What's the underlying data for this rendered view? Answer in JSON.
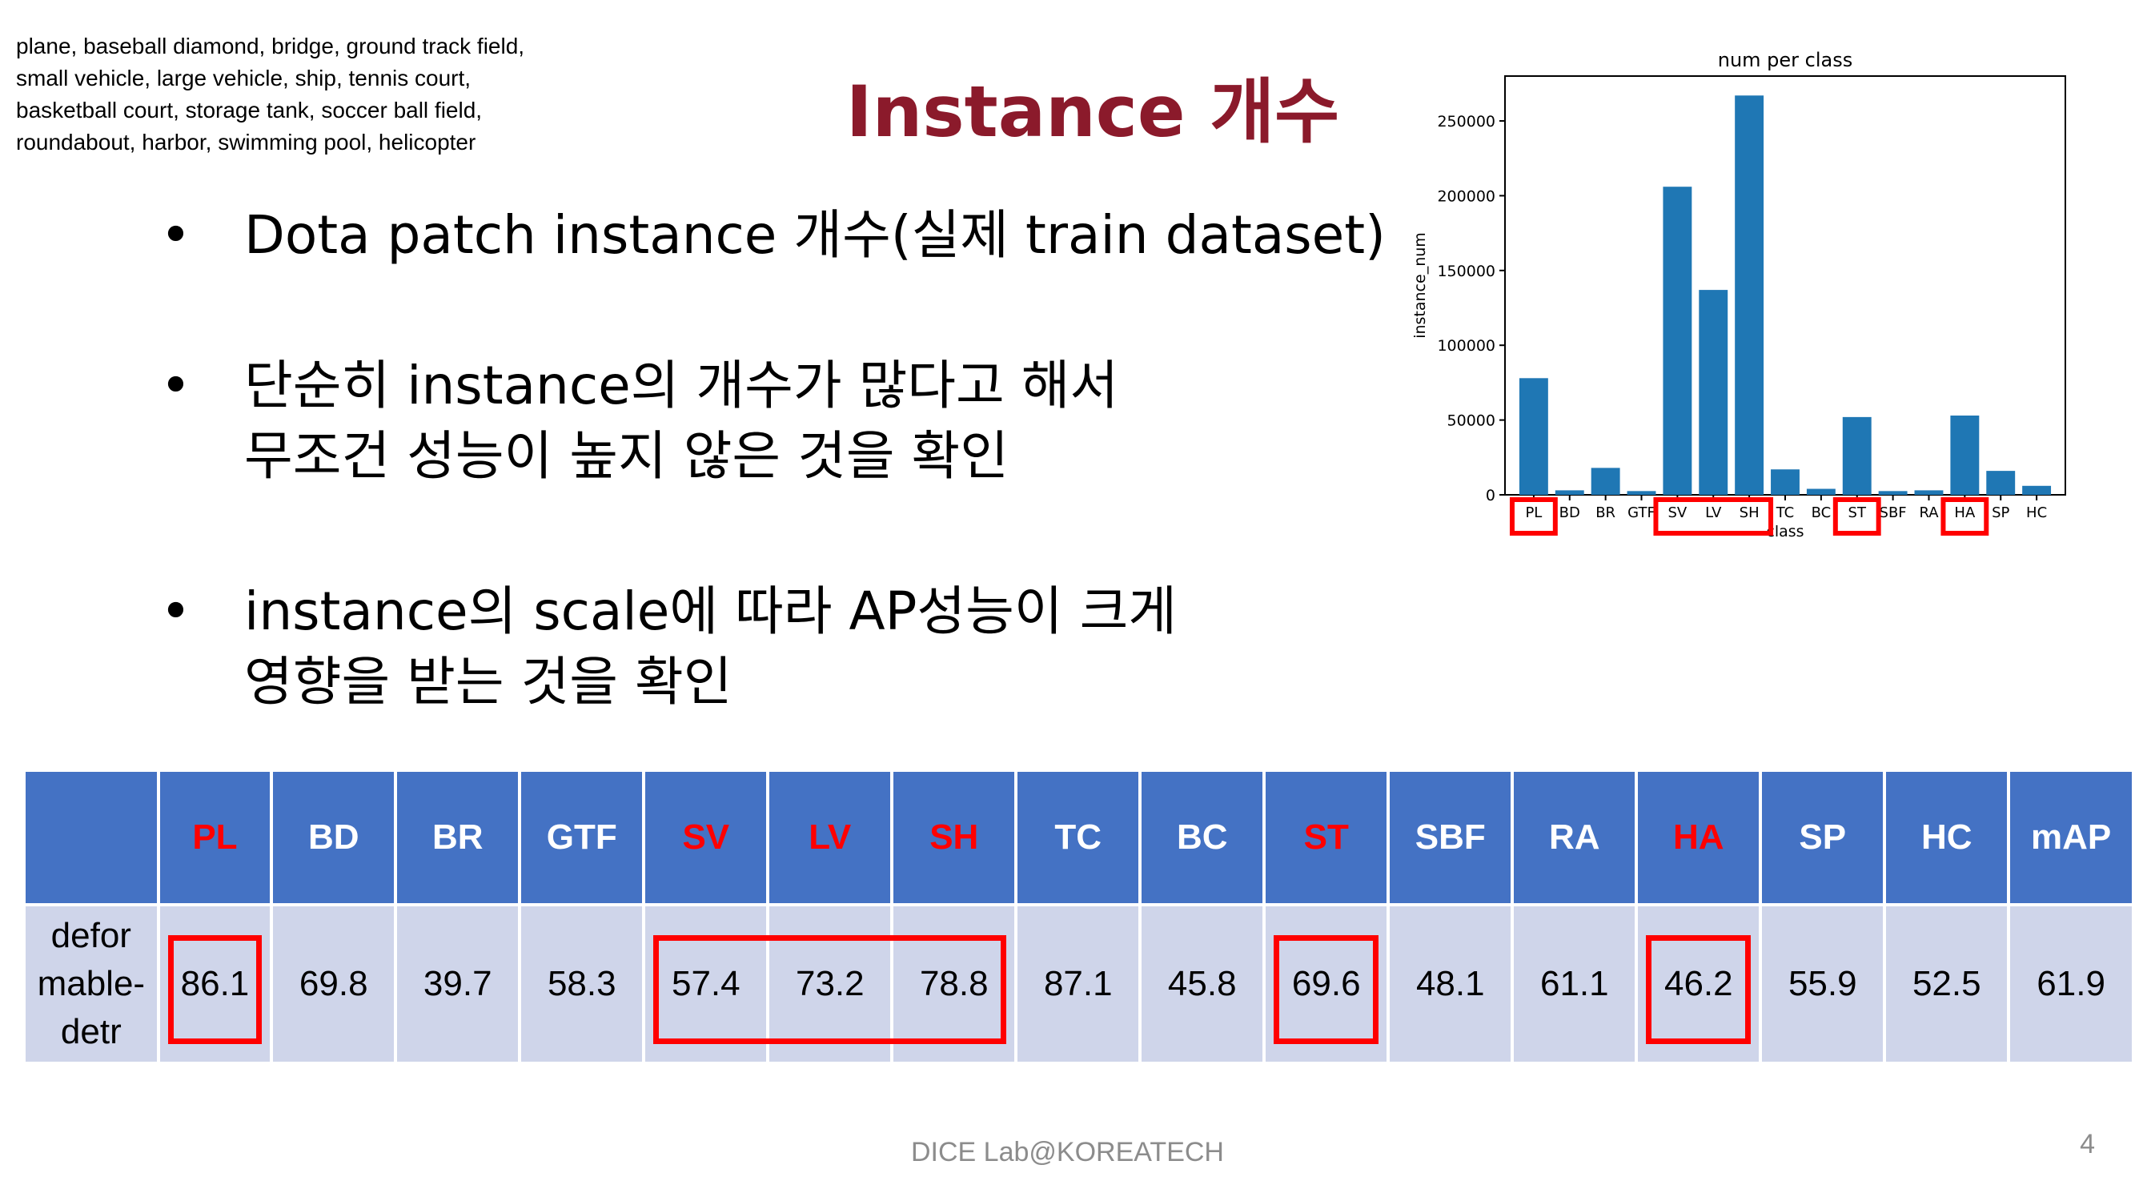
{
  "corner_note": "plane, baseball diamond, bridge, ground track field, small vehicle, large vehicle, ship, tennis court, basketball court, storage tank, soccer ball field, roundabout, harbor, swimming pool, helicopter",
  "slide_title": "Instance 개수",
  "bullets": [
    {
      "lines": [
        "Dota patch instance 개수(실제 train dataset)"
      ]
    },
    {
      "lines": [
        "단순히 instance의 개수가 많다고 해서",
        "무조건 성능이 높지 않은 것을 확인"
      ]
    },
    {
      "lines": [
        "instance의 scale에 따라 AP성능이 크게",
        "영향을 받는 것을 확인"
      ]
    }
  ],
  "bullet_symbol": "•",
  "chart_data": {
    "type": "bar",
    "title": "num per class",
    "xlabel": "class",
    "ylabel": "instance_num",
    "categories": [
      "PL",
      "BD",
      "BR",
      "GTF",
      "SV",
      "LV",
      "SH",
      "TC",
      "BC",
      "ST",
      "SBF",
      "RA",
      "HA",
      "SP",
      "HC"
    ],
    "values": [
      78000,
      3000,
      18000,
      2500,
      206000,
      137000,
      267000,
      17000,
      4000,
      52000,
      2500,
      3000,
      53000,
      16000,
      6000
    ],
    "ylim": [
      0,
      280000
    ],
    "yticks": [
      0,
      50000,
      100000,
      150000,
      200000,
      250000
    ],
    "bar_color": "#1f77b4",
    "highlighted_categories": [
      [
        "PL"
      ],
      [
        "SV",
        "LV",
        "SH"
      ],
      [
        "ST"
      ],
      [
        "HA"
      ]
    ],
    "highlight_color": "#ff0000"
  },
  "table": {
    "headers": [
      "",
      "PL",
      "BD",
      "BR",
      "GTF",
      "SV",
      "LV",
      "SH",
      "TC",
      "BC",
      "ST",
      "SBF",
      "RA",
      "HA",
      "SP",
      "HC",
      "mAP"
    ],
    "highlight_headers": [
      "PL",
      "SV",
      "LV",
      "SH",
      "ST",
      "HA"
    ],
    "row_label": [
      "defor",
      "mable-",
      "detr"
    ],
    "values": [
      "86.1",
      "69.8",
      "39.7",
      "58.3",
      "57.4",
      "73.2",
      "78.8",
      "87.1",
      "45.8",
      "69.6",
      "48.1",
      "61.1",
      "46.2",
      "55.9",
      "52.5",
      "61.9"
    ],
    "header_bg": "#4472c4",
    "row_bg": "#cfd5ea"
  },
  "footer": "DICE  Lab@KOREATECH",
  "page_number": "4"
}
